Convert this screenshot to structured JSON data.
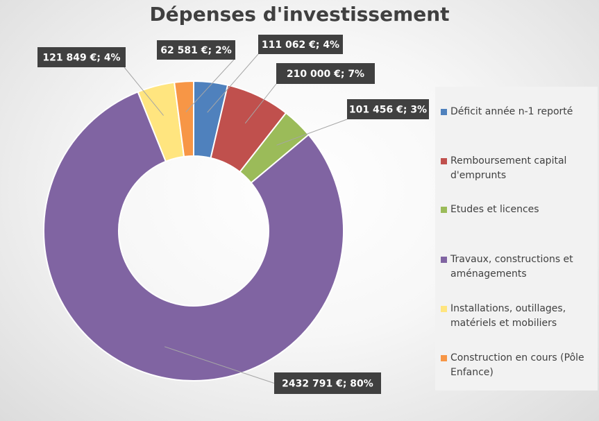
{
  "chart_data": {
    "type": "doughnut",
    "title": "Dépenses d'investissement",
    "series": [
      {
        "name": "Déficit année n-1 reporté",
        "value": 111062,
        "label": "111 062 €; 4%",
        "color": "#4f81bd"
      },
      {
        "name": "Remboursement capital d'emprunts",
        "value": 210000,
        "label": "210 000 €; 7%",
        "color": "#c0504d"
      },
      {
        "name": "Etudes et licences",
        "value": 101456,
        "label": "101 456 €; 3%",
        "color": "#9bbb59"
      },
      {
        "name": "Travaux, constructions et aménagements",
        "value": 2432791,
        "label": "2432 791 €; 80%",
        "color": "#8064a2"
      },
      {
        "name": "Installations, outillages, matériels et mobiliers",
        "value": 121849,
        "label": "121 849 €; 4%",
        "color": "#ffe57f"
      },
      {
        "name": "Construction en cours (Pôle Enfance)",
        "value": 62581,
        "label": "62 581 €; 2%",
        "color": "#f79646"
      }
    ],
    "legend_position": "right"
  }
}
